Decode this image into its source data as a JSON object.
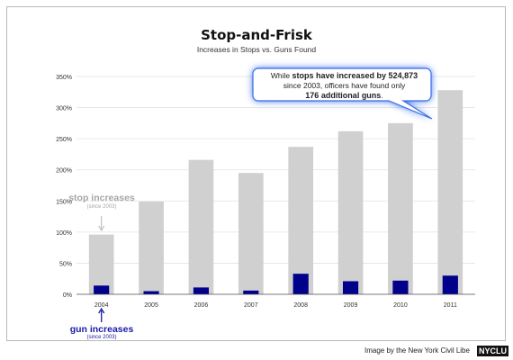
{
  "chart_data": {
    "type": "bar",
    "title": "Stop-and-Frisk",
    "subtitle": "Increases in Stops vs. Guns Found",
    "categories": [
      "2004",
      "2005",
      "2006",
      "2007",
      "2008",
      "2009",
      "2010",
      "2011"
    ],
    "series": [
      {
        "values": [
          96,
          149,
          216,
          195,
          237,
          262,
          275,
          328
        ],
        "color": "#d0d0d0"
      },
      {
        "values": [
          14,
          5,
          11,
          6,
          33,
          21,
          22,
          30
        ],
        "color": "#00008b"
      }
    ],
    "y_ticks": [
      0,
      50,
      100,
      150,
      200,
      250,
      300,
      350
    ],
    "y_tick_labels": [
      "0%",
      "50%",
      "100%",
      "150%",
      "200%",
      "250%",
      "300%",
      "350%"
    ],
    "ylim": [
      0,
      350
    ],
    "grid": true,
    "annotation": {
      "line1_pre": "While ",
      "line1_bold": "stops have increased by 524,873",
      "line2": "since 2003, officers have found only",
      "line3_bold": "176 additional guns",
      "line3_post": "."
    },
    "stop_label": {
      "title": "stop increases",
      "note": "(since 2003)"
    },
    "gun_label": {
      "title": "gun increases",
      "note": "(since 2003)"
    }
  },
  "credit": "Image by the New York Civil Libe",
  "brand": "NYCLU"
}
